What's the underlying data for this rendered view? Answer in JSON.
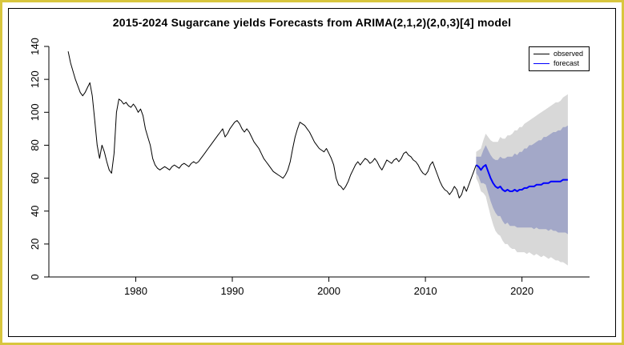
{
  "title": "2015-2024 Sugarcane yields Forecasts from ARIMA(2,1,2)(2,0,3)[4] model",
  "colors": {
    "frame_border": "#d8c63e",
    "inner_border": "#000000",
    "background": "#ffffff",
    "axis": "#000000",
    "observed_line": "#000000",
    "forecast_line": "#0000ff",
    "band_80": "#a3a8c8",
    "band_95": "#d8d8d8"
  },
  "legend": {
    "items": [
      {
        "label": "observed",
        "color": "#000000"
      },
      {
        "label": "forecast",
        "color": "#0000ff"
      }
    ]
  },
  "chart_data": {
    "type": "line",
    "title": "2015-2024 Sugarcane yields Forecasts from ARIMA(2,1,2)(2,0,3)[4] model",
    "xlabel": "",
    "ylabel": "",
    "xlim": [
      1971,
      2027
    ],
    "ylim": [
      0,
      140
    ],
    "x_ticks": [
      1980,
      1990,
      2000,
      2010,
      2020
    ],
    "y_ticks": [
      0,
      20,
      40,
      60,
      80,
      100,
      120,
      140
    ],
    "grid": false,
    "legend_position": "top-right",
    "x_unit": "year (quarterly observations)",
    "series": [
      {
        "name": "observed",
        "color": "#000000",
        "width": 1,
        "x_start": 1973.0,
        "x_step": 0.25,
        "y": [
          137,
          130,
          125,
          120,
          116,
          112,
          110,
          112,
          115,
          118,
          110,
          95,
          80,
          72,
          80,
          76,
          70,
          65,
          63,
          75,
          100,
          108,
          107,
          105,
          106,
          104,
          103,
          105,
          103,
          100,
          102,
          98,
          90,
          85,
          80,
          72,
          68,
          66,
          65,
          66,
          67,
          66,
          65,
          67,
          68,
          67,
          66,
          68,
          69,
          68,
          67,
          69,
          70,
          69,
          70,
          72,
          74,
          76,
          78,
          80,
          82,
          84,
          86,
          88,
          90,
          85,
          87,
          90,
          92,
          94,
          95,
          93,
          90,
          88,
          90,
          88,
          85,
          82,
          80,
          78,
          75,
          72,
          70,
          68,
          66,
          64,
          63,
          62,
          61,
          60,
          62,
          65,
          70,
          78,
          85,
          90,
          94,
          93,
          92,
          90,
          88,
          85,
          82,
          80,
          78,
          77,
          76,
          78,
          75,
          72,
          68,
          60,
          56,
          55,
          53,
          55,
          58,
          62,
          65,
          68,
          70,
          68,
          70,
          72,
          71,
          69,
          70,
          72,
          70,
          67,
          65,
          68,
          71,
          70,
          69,
          71,
          72,
          70,
          72,
          75,
          76,
          74,
          73,
          71,
          70,
          68,
          65,
          63,
          62,
          64,
          68,
          70,
          66,
          62,
          58,
          55,
          53,
          52,
          50,
          52,
          55,
          53,
          48,
          50,
          55,
          52,
          56,
          60,
          64,
          68
        ]
      },
      {
        "name": "forecast",
        "color": "#0000ff",
        "width": 2,
        "x_start": 2015.25,
        "x_step": 0.25,
        "y": [
          68,
          67,
          65,
          67,
          68,
          64,
          60,
          57,
          55,
          54,
          55,
          53,
          52,
          53,
          52,
          52,
          53,
          52,
          53,
          53,
          54,
          54,
          55,
          55,
          55,
          56,
          56,
          56,
          57,
          57,
          57,
          58,
          58,
          58,
          58,
          58,
          59,
          59,
          59
        ]
      }
    ],
    "bands": [
      {
        "name": "95-percent-interval",
        "color": "#d8d8d8",
        "x_start": 2015.25,
        "x_step": 0.25,
        "y_lower": [
          60,
          57,
          52,
          51,
          49,
          43,
          37,
          32,
          28,
          26,
          25,
          22,
          20,
          20,
          18,
          17,
          17,
          15,
          15,
          15,
          15,
          14,
          15,
          14,
          13,
          14,
          13,
          12,
          13,
          12,
          11,
          12,
          11,
          10,
          10,
          9,
          9,
          8,
          7
        ],
        "y_upper": [
          76,
          77,
          78,
          83,
          87,
          85,
          83,
          82,
          82,
          82,
          85,
          84,
          84,
          86,
          86,
          87,
          89,
          89,
          91,
          91,
          93,
          94,
          95,
          96,
          97,
          98,
          99,
          100,
          101,
          102,
          103,
          104,
          105,
          106,
          106,
          107,
          109,
          110,
          111
        ]
      },
      {
        "name": "80-percent-interval",
        "color": "#a3a8c8",
        "x_start": 2015.25,
        "x_step": 0.25,
        "y_lower": [
          63,
          61,
          57,
          57,
          56,
          51,
          46,
          42,
          39,
          37,
          37,
          34,
          32,
          33,
          31,
          31,
          31,
          30,
          30,
          30,
          30,
          30,
          30,
          30,
          29,
          30,
          29,
          29,
          29,
          29,
          28,
          29,
          28,
          28,
          27,
          27,
          27,
          27,
          26
        ],
        "y_upper": [
          73,
          73,
          73,
          77,
          80,
          77,
          74,
          72,
          71,
          71,
          73,
          72,
          72,
          73,
          73,
          73,
          75,
          74,
          76,
          76,
          78,
          78,
          80,
          80,
          81,
          82,
          83,
          83,
          85,
          85,
          86,
          87,
          88,
          88,
          89,
          89,
          91,
          91,
          92
        ]
      }
    ]
  }
}
